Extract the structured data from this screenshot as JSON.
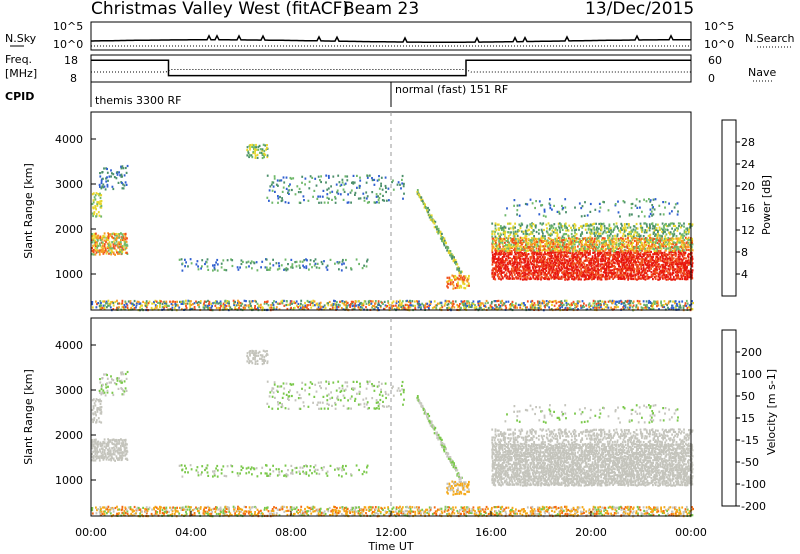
{
  "header": {
    "title": "Christmas Valley West (fitACF)",
    "beam": "Beam 23",
    "date": "13/Dec/2015"
  },
  "nsky_panel": {
    "left_label": "N.Sky",
    "right_label": "N.Search",
    "ticks": [
      "10^5",
      "10^0"
    ]
  },
  "freq_panel": {
    "left_label_1": "Freq.",
    "left_label_2": "[MHz]",
    "left_ticks": [
      "18",
      "8"
    ],
    "right_ticks": [
      "60",
      "0"
    ],
    "right_label": "Nave",
    "freq_steps": [
      {
        "t0": 0,
        "t1": 3.1,
        "value": 17
      },
      {
        "t0": 3.1,
        "t1": 15.0,
        "value": 10
      },
      {
        "t0": 15.0,
        "t1": 24,
        "value": 17
      }
    ]
  },
  "cpid_panel": {
    "label": "CPID",
    "segments": [
      {
        "t_start": 0,
        "text": "themis 3300 RF"
      },
      {
        "t_start": 12,
        "text": "normal (fast) 151 RF"
      }
    ]
  },
  "chart_data": [
    {
      "type": "heatmap",
      "name": "power",
      "ylabel": "Slant Range [km]",
      "y_ticks": [
        "1000",
        "2000",
        "3000",
        "4000"
      ],
      "ylim": [
        200,
        4600
      ],
      "xlim": [
        0,
        24
      ],
      "colorbar_label": "Power [dB]",
      "colorbar_ticks": [
        "4",
        "8",
        "12",
        "16",
        "20",
        "24",
        "28"
      ],
      "colorbar_range": [
        0,
        32
      ],
      "colors": [
        "#1f2bdb",
        "#2f5fd0",
        "#4b8f6a",
        "#6fb86a",
        "#e8d62a",
        "#f59a22",
        "#f0501c",
        "#e8180e"
      ],
      "noon_marker": 12
    },
    {
      "type": "heatmap",
      "name": "velocity",
      "ylabel": "Slant Range [km]",
      "y_ticks": [
        "1000",
        "2000",
        "3000",
        "4000"
      ],
      "ylim": [
        200,
        4600
      ],
      "xlim": [
        0,
        24
      ],
      "xlabel": "Time UT",
      "x_ticks": [
        "00:00",
        "04:00",
        "08:00",
        "12:00",
        "16:00",
        "20:00",
        "00:00"
      ],
      "colorbar_label": "Velocity [m s-1]",
      "colorbar_ticks": [
        "200",
        "100",
        "50",
        "15",
        "-15",
        "-50",
        "-100",
        "-200"
      ],
      "colors": [
        "#2432c0",
        "#2f6fb8",
        "#3d8c5a",
        "#7ac84a",
        "#c8c8c0",
        "#f4a818",
        "#f46a10",
        "#e8180e"
      ],
      "ground_scatter_color": "#c4c4bc",
      "noon_marker": 12
    }
  ]
}
